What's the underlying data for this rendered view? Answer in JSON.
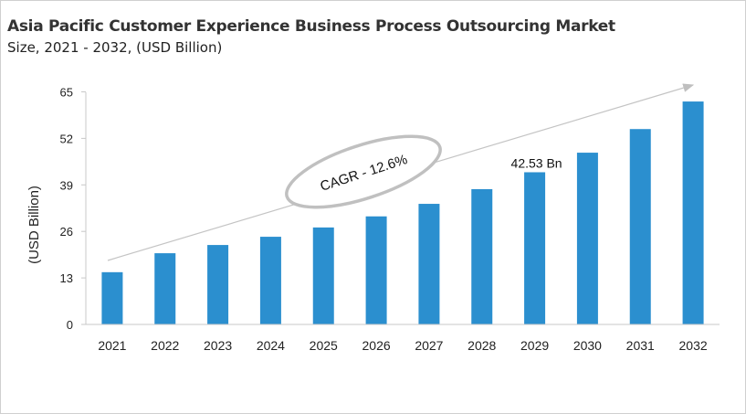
{
  "title": "Asia Pacific Customer Experience Business Process Outsourcing Market",
  "subtitle": "Size, 2021 - 2032, (USD Billion)",
  "chart_data": {
    "type": "bar",
    "categories": [
      "2021",
      "2022",
      "2023",
      "2024",
      "2025",
      "2026",
      "2027",
      "2028",
      "2029",
      "2030",
      "2031",
      "2032"
    ],
    "values": [
      14.6,
      19.9,
      22.2,
      24.5,
      27.1,
      30.2,
      33.7,
      37.8,
      42.53,
      48.0,
      54.6,
      62.3
    ],
    "ylabel": "(USD Billion)",
    "ylim": [
      0,
      65
    ],
    "yticks": [
      0,
      13,
      26,
      39,
      52,
      65
    ],
    "grid": false,
    "bar_color": "#2b8fcf",
    "annotations": {
      "cagr": "CAGR - 12.6%",
      "data_label": "42.53 Bn",
      "data_label_category": "2029"
    }
  }
}
